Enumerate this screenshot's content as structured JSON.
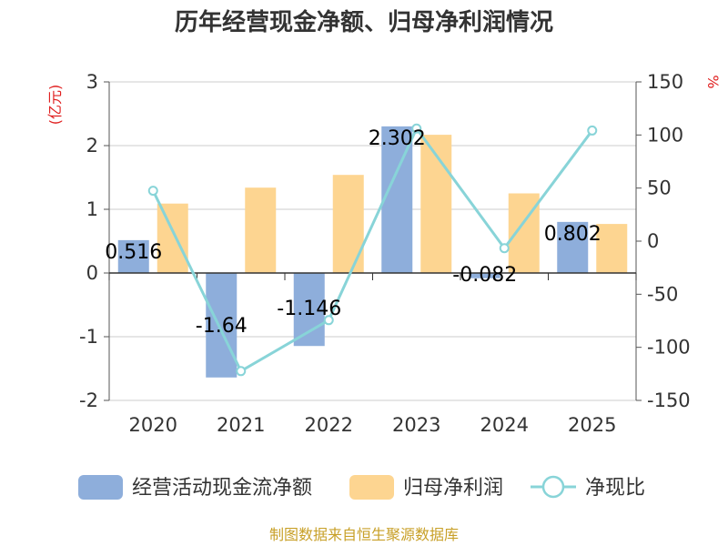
{
  "chart_data": {
    "type": "bar",
    "title": "历年经营现金净额、归母净利润情况",
    "categories": [
      "2020",
      "2021",
      "2022",
      "2023",
      "2024",
      "2025"
    ],
    "series": [
      {
        "name": "经营活动现金流净额",
        "kind": "bar",
        "axis": "left",
        "color": "#8eaedb",
        "values": [
          0.516,
          -1.64,
          -1.146,
          2.302,
          -0.082,
          0.802
        ],
        "labels": [
          "0.516",
          "-1.64",
          "-1.146",
          "2.302",
          "-0.082",
          "0.802"
        ]
      },
      {
        "name": "归母净利润",
        "kind": "bar",
        "axis": "left",
        "color": "#fdd591",
        "values": [
          1.09,
          1.34,
          1.54,
          2.17,
          1.25,
          0.77
        ]
      },
      {
        "name": "净现比",
        "kind": "line",
        "axis": "right",
        "color": "#88d4d8",
        "values": [
          47.5,
          -122.4,
          -74.4,
          106.1,
          -6.6,
          104.2
        ]
      }
    ],
    "left_axis": {
      "unit": "(亿元)",
      "ylim": [
        -2,
        3
      ],
      "ticks": [
        -2,
        -1,
        0,
        1,
        2,
        3
      ],
      "tick_labels": [
        "-2",
        "-1",
        "0",
        "1",
        "2",
        "3"
      ]
    },
    "right_axis": {
      "unit": "%",
      "ylim": [
        -150,
        150
      ],
      "ticks": [
        -150,
        -100,
        -50,
        0,
        50,
        100,
        150
      ],
      "tick_labels": [
        "-150",
        "-100",
        "-50",
        "0",
        "50",
        "100",
        "150"
      ]
    },
    "legend_position": "bottom",
    "source": "制图数据来自恒生聚源数据库"
  }
}
